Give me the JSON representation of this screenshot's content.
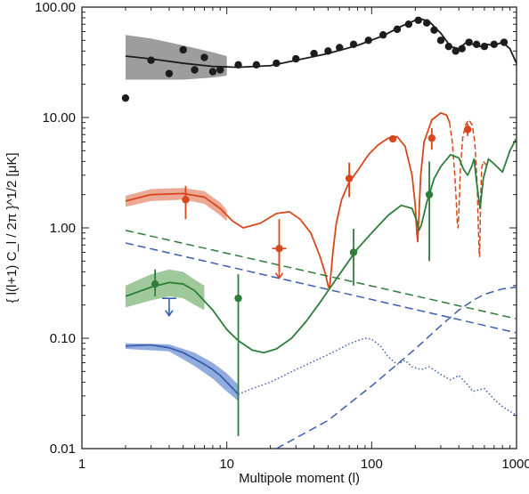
{
  "chart_data": {
    "type": "scatter",
    "title": "",
    "xlabel": "Multipole moment (l)",
    "ylabel": "{ l(l+1) C_l / 2π }^1/2 [μK]",
    "xscale": "log",
    "yscale": "log",
    "xlim": [
      1,
      1000
    ],
    "ylim": [
      0.01,
      100
    ],
    "grid": false,
    "legend": "none",
    "x_ticks": [
      1,
      10,
      100,
      1000
    ],
    "x_tick_labels": [
      "1",
      "10",
      "100",
      "1000"
    ],
    "y_ticks": [
      0.01,
      0.1,
      1,
      10,
      100
    ],
    "y_tick_labels": [
      "0.01",
      "0.10",
      "1.00",
      "10.00",
      "100.00"
    ],
    "colors": {
      "temperature": "#1c1c1c",
      "te": "#d8471c",
      "e_mode": "#2e7d3a",
      "b_mode": "#3a5fb0",
      "band_temperature": "#8c8c8c",
      "band_te": "#e89a84",
      "band_e_mode": "#8fbf8a",
      "band_b_mode": "#7f9ed8"
    },
    "series": [
      {
        "key": "temperature",
        "style": "points",
        "x": [
          2,
          3,
          4,
          5,
          6,
          7,
          8,
          9,
          12,
          16,
          22,
          30,
          40,
          50,
          60,
          75,
          95,
          120,
          150,
          180,
          210,
          240,
          270,
          300,
          340,
          380,
          420,
          470,
          530,
          600,
          700,
          820
        ],
        "y": [
          15,
          33,
          25,
          41,
          27,
          35,
          26,
          27,
          30,
          30,
          31,
          34,
          38,
          40,
          43,
          46,
          50,
          56,
          63,
          70,
          76,
          72,
          62,
          50,
          44,
          40,
          42,
          48,
          46,
          44,
          46,
          48
        ]
      },
      {
        "key": "temperature",
        "style": "line",
        "x": [
          2,
          3,
          5,
          8,
          12,
          20,
          30,
          50,
          80,
          120,
          160,
          200,
          220,
          250,
          300,
          350,
          400,
          450,
          500,
          560,
          620,
          700,
          800,
          900,
          1000
        ],
        "y": [
          36,
          34,
          31,
          29,
          28.5,
          29.5,
          33,
          38,
          45,
          55,
          67,
          76,
          78,
          74,
          58,
          44,
          42,
          48,
          46,
          44,
          46,
          45,
          48,
          42,
          31
        ]
      },
      {
        "key": "temperature",
        "style": "band",
        "x": [
          2,
          3,
          5,
          8,
          10
        ],
        "y_low": [
          22,
          22,
          22,
          23,
          24
        ],
        "y_high": [
          56,
          52,
          45,
          39,
          36
        ]
      },
      {
        "key": "te",
        "style": "points",
        "x": [
          5.2,
          23,
          70,
          140,
          260,
          460
        ],
        "y": [
          1.8,
          0.65,
          2.8,
          6.4,
          6.5,
          7.8
        ],
        "y_low": [
          1.2,
          0.4,
          1.9,
          6.2,
          5.1,
          6.8
        ],
        "y_high": [
          2.4,
          1.2,
          3.9,
          6.6,
          8.0,
          8.8
        ]
      },
      {
        "key": "te",
        "style": "upper_limit",
        "x": [
          23
        ],
        "y": [
          0.65
        ],
        "arrow_to": [
          0.35
        ]
      },
      {
        "key": "te",
        "style": "line",
        "x": [
          2,
          3,
          5,
          7,
          9,
          11,
          13,
          17,
          22,
          27,
          32,
          38,
          44,
          48,
          50,
          51,
          52,
          54,
          57,
          62,
          70,
          80,
          95,
          110,
          130,
          150,
          170,
          190,
          200,
          205,
          208,
          212,
          218,
          230,
          260,
          300,
          330,
          345
        ],
        "y": [
          1.75,
          2.0,
          2.05,
          1.9,
          1.5,
          1.15,
          1.0,
          1.1,
          1.35,
          1.4,
          1.2,
          0.9,
          0.55,
          0.38,
          0.3,
          0.28,
          0.35,
          0.6,
          1.1,
          1.8,
          2.6,
          3.3,
          4.6,
          5.6,
          6.5,
          6.7,
          5.5,
          3.0,
          1.6,
          0.9,
          0.75,
          1.3,
          3.0,
          6.0,
          9.5,
          11.0,
          10.5,
          9.0
        ]
      },
      {
        "key": "te",
        "style": "dashed_line",
        "x": [
          345,
          360,
          375,
          385,
          390,
          395,
          400,
          410,
          425,
          445,
          470,
          495,
          515,
          535,
          545,
          552,
          556,
          560,
          566,
          575,
          590,
          610,
          630
        ],
        "y": [
          9.0,
          6.0,
          3.0,
          1.6,
          1.1,
          1.0,
          1.4,
          3.5,
          6.5,
          8.6,
          9.5,
          8.5,
          6.0,
          2.5,
          1.0,
          0.6,
          0.55,
          0.9,
          2.0,
          3.5,
          4.0,
          3.8,
          3.6
        ]
      },
      {
        "key": "te",
        "style": "band",
        "x": [
          2,
          3,
          5,
          7,
          9,
          10
        ],
        "y_low": [
          1.55,
          1.75,
          1.8,
          1.65,
          1.3,
          1.15
        ],
        "y_high": [
          1.95,
          2.25,
          2.3,
          2.15,
          1.7,
          1.45
        ]
      },
      {
        "key": "e_mode",
        "style": "points",
        "x": [
          3.2,
          12,
          75,
          250
        ],
        "y": [
          0.31,
          0.23,
          0.6,
          2.0
        ],
        "y_low": [
          0.24,
          0.013,
          0.3,
          0.5
        ],
        "y_high": [
          0.42,
          0.38,
          0.98,
          4.0
        ]
      },
      {
        "key": "e_mode",
        "style": "line",
        "x": [
          2,
          3,
          4,
          5,
          6,
          8,
          10,
          12,
          15,
          18,
          22,
          28,
          35,
          45,
          60,
          80,
          100,
          130,
          160,
          190,
          205,
          212,
          220,
          240,
          270,
          300,
          350,
          400,
          430,
          460,
          490,
          510,
          530,
          560,
          590,
          640,
          700,
          800,
          900,
          1000
        ],
        "y": [
          0.24,
          0.29,
          0.32,
          0.31,
          0.27,
          0.18,
          0.12,
          0.095,
          0.078,
          0.074,
          0.08,
          0.1,
          0.14,
          0.22,
          0.38,
          0.65,
          0.9,
          1.3,
          1.6,
          1.5,
          1.15,
          0.95,
          1.05,
          1.7,
          2.8,
          3.6,
          4.6,
          4.3,
          3.4,
          3.0,
          3.6,
          4.2,
          2.6,
          1.5,
          2.8,
          4.2,
          3.8,
          3.2,
          5.0,
          6.5
        ]
      },
      {
        "key": "e_mode",
        "style": "band",
        "x": [
          2,
          3,
          4,
          5,
          6,
          7
        ],
        "y_low": [
          0.19,
          0.22,
          0.24,
          0.23,
          0.2,
          0.18
        ],
        "y_high": [
          0.3,
          0.38,
          0.42,
          0.4,
          0.34,
          0.3
        ]
      },
      {
        "key": "e_mode",
        "style": "dashed_line",
        "x": [
          2,
          1000
        ],
        "y": [
          0.95,
          0.15
        ]
      },
      {
        "key": "b_mode",
        "style": "upper_limit",
        "x": [
          4
        ],
        "y": [
          0.23
        ],
        "arrow_to": [
          0.16
        ]
      },
      {
        "key": "b_mode",
        "style": "line",
        "x": [
          2,
          3,
          4,
          5,
          6,
          7,
          8,
          9,
          10,
          11,
          12
        ],
        "y": [
          0.085,
          0.087,
          0.082,
          0.074,
          0.065,
          0.058,
          0.052,
          0.046,
          0.04,
          0.035,
          0.031
        ]
      },
      {
        "key": "b_mode",
        "style": "band",
        "x": [
          2,
          4,
          6,
          8,
          10,
          12
        ],
        "y_low": [
          0.08,
          0.076,
          0.056,
          0.043,
          0.033,
          0.027
        ],
        "y_high": [
          0.09,
          0.088,
          0.074,
          0.06,
          0.048,
          0.038
        ]
      },
      {
        "key": "b_mode",
        "style": "dotted_line",
        "x": [
          12,
          15,
          20,
          30,
          40,
          50,
          60,
          70,
          80,
          90,
          100,
          115,
          130,
          150,
          170,
          190,
          220,
          250,
          300,
          350,
          400,
          450,
          500,
          600,
          700,
          800,
          1000
        ],
        "y": [
          0.031,
          0.035,
          0.04,
          0.052,
          0.062,
          0.071,
          0.08,
          0.089,
          0.095,
          0.1,
          0.098,
          0.085,
          0.068,
          0.058,
          0.063,
          0.055,
          0.052,
          0.055,
          0.047,
          0.042,
          0.046,
          0.039,
          0.033,
          0.035,
          0.028,
          0.024,
          0.02
        ]
      },
      {
        "key": "b_mode",
        "style": "dashed_line",
        "x": [
          2,
          1000
        ],
        "y": [
          0.73,
          0.112
        ]
      },
      {
        "key": "b_mode",
        "style": "dashed_line",
        "x": [
          22,
          50,
          100,
          200,
          300,
          400,
          500,
          600,
          800,
          1000
        ],
        "y": [
          0.01,
          0.018,
          0.037,
          0.08,
          0.13,
          0.18,
          0.22,
          0.25,
          0.28,
          0.29
        ]
      }
    ]
  }
}
